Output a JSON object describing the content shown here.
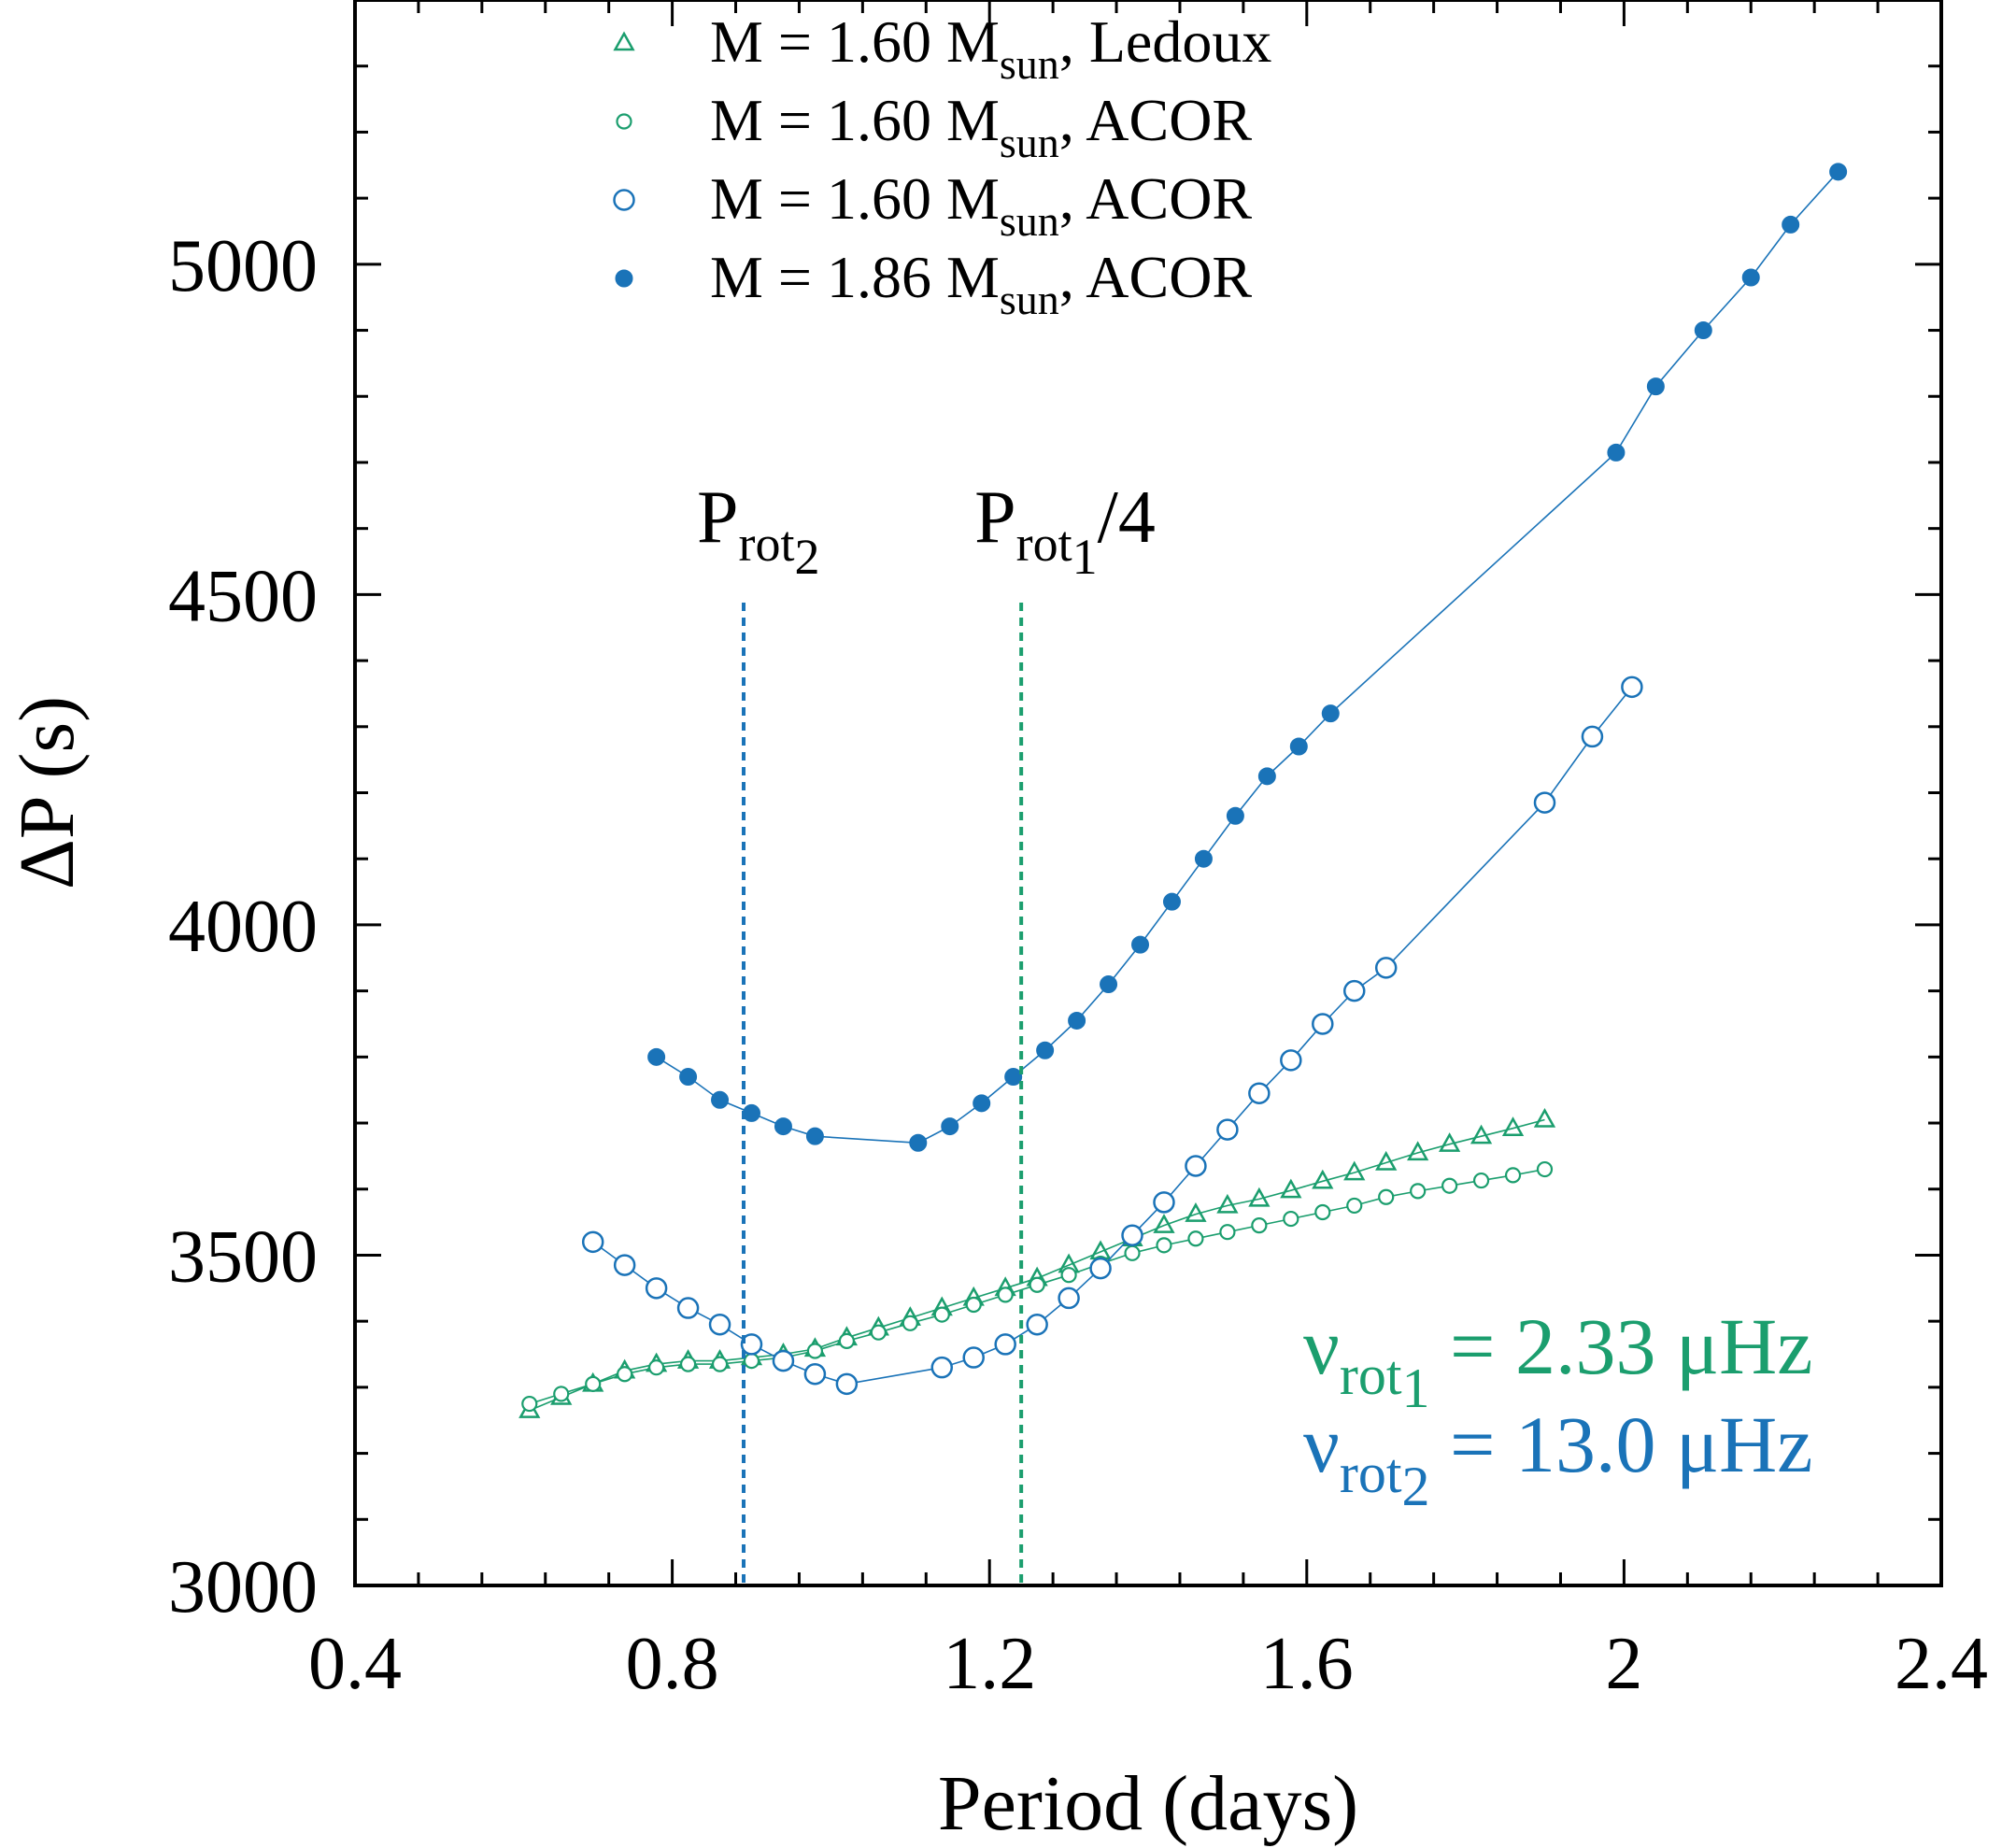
{
  "chart_data": {
    "type": "line",
    "xlabel": "Period (days)",
    "ylabel": "ΔP (s)",
    "xlim": [
      0.4,
      2.4
    ],
    "ylim": [
      3000,
      5400
    ],
    "xticks": [
      0.4,
      0.8,
      1.2,
      1.6,
      2.0,
      2.4
    ],
    "xtick_labels": [
      "0.4",
      "0.8",
      "1.2",
      "1.6",
      "2",
      "2.4"
    ],
    "yticks": [
      3000,
      3500,
      4000,
      4500,
      5000
    ],
    "ytick_labels": [
      "3000",
      "3500",
      "4000",
      "4500",
      "5000"
    ],
    "x_minor_step": 0.08,
    "y_minor_step": 100,
    "grid": false,
    "legend_position": "top-left",
    "series": [
      {
        "name": "M = 1.60 Msun, Ledoux",
        "legend": {
          "pre": "M = 1.60 M",
          "sub": "sun",
          "post": ", Ledoux"
        },
        "color": "#1b9e6e",
        "marker": "open-triangle",
        "x": [
          0.62,
          0.66,
          0.7,
          0.74,
          0.78,
          0.82,
          0.86,
          0.9,
          0.94,
          0.98,
          1.02,
          1.06,
          1.1,
          1.14,
          1.18,
          1.22,
          1.26,
          1.3,
          1.34,
          1.38,
          1.42,
          1.46,
          1.5,
          1.54,
          1.58,
          1.62,
          1.66,
          1.7,
          1.74,
          1.78,
          1.82,
          1.86,
          1.9
        ],
        "y": [
          3265,
          3285,
          3305,
          3325,
          3335,
          3340,
          3340,
          3345,
          3350,
          3358,
          3375,
          3390,
          3405,
          3420,
          3435,
          3450,
          3465,
          3485,
          3505,
          3525,
          3545,
          3562,
          3575,
          3585,
          3598,
          3612,
          3625,
          3640,
          3655,
          3668,
          3680,
          3692,
          3705
        ]
      },
      {
        "name": "M = 1.60 Msun, ACOR (small)",
        "legend": {
          "pre": "M = 1.60 M",
          "sub": "sun",
          "post": ", ACOR"
        },
        "color": "#1b9e6e",
        "marker": "small-open-circle",
        "x": [
          0.62,
          0.66,
          0.7,
          0.74,
          0.78,
          0.82,
          0.86,
          0.9,
          0.94,
          0.98,
          1.02,
          1.06,
          1.1,
          1.14,
          1.18,
          1.22,
          1.26,
          1.3,
          1.34,
          1.38,
          1.42,
          1.46,
          1.5,
          1.54,
          1.58,
          1.62,
          1.66,
          1.7,
          1.74,
          1.78,
          1.82,
          1.86,
          1.9
        ],
        "y": [
          3275,
          3290,
          3305,
          3320,
          3330,
          3335,
          3335,
          3340,
          3345,
          3355,
          3370,
          3383,
          3397,
          3410,
          3425,
          3440,
          3455,
          3470,
          3487,
          3503,
          3515,
          3525,
          3535,
          3545,
          3555,
          3565,
          3575,
          3588,
          3597,
          3605,
          3613,
          3621,
          3630
        ]
      },
      {
        "name": "M = 1.60 Msun, ACOR (large)",
        "legend": {
          "pre": "M = 1.60 M",
          "sub": "sun",
          "post": ", ACOR"
        },
        "color": "#1a73b8",
        "marker": "open-circle",
        "x": [
          0.7,
          0.74,
          0.78,
          0.82,
          0.86,
          0.9,
          0.94,
          0.98,
          1.02,
          1.14,
          1.18,
          1.22,
          1.26,
          1.3,
          1.34,
          1.38,
          1.42,
          1.46,
          1.5,
          1.54,
          1.58,
          1.62,
          1.66,
          1.7,
          1.9,
          1.96,
          2.01
        ],
        "y": [
          3520,
          3485,
          3450,
          3420,
          3395,
          3365,
          3340,
          3320,
          3305,
          3330,
          3345,
          3365,
          3395,
          3435,
          3480,
          3530,
          3580,
          3635,
          3690,
          3745,
          3795,
          3850,
          3900,
          3935,
          4185,
          4285,
          4360
        ]
      },
      {
        "name": "M = 1.86 Msun, ACOR",
        "legend": {
          "pre": "M = 1.86 M",
          "sub": "sun",
          "post": ", ACOR"
        },
        "color": "#1a73b8",
        "marker": "filled-circle",
        "x": [
          0.78,
          0.82,
          0.86,
          0.9,
          0.94,
          0.98,
          1.11,
          1.15,
          1.19,
          1.23,
          1.27,
          1.31,
          1.35,
          1.39,
          1.43,
          1.47,
          1.51,
          1.55,
          1.59,
          1.63,
          1.99,
          2.04,
          2.1,
          2.16,
          2.21,
          2.27
        ],
        "y": [
          3800,
          3770,
          3735,
          3715,
          3695,
          3680,
          3670,
          3695,
          3730,
          3770,
          3810,
          3855,
          3910,
          3970,
          4035,
          4100,
          4165,
          4225,
          4270,
          4320,
          4715,
          4815,
          4900,
          4980,
          5060,
          5140
        ]
      }
    ],
    "vlines": [
      {
        "x": 0.89,
        "color": "#1a73b8",
        "label": {
          "main": "P",
          "sub": "rot",
          "subsub": "2",
          "post": ""
        }
      },
      {
        "x": 1.24,
        "color": "#1b9e6e",
        "label": {
          "main": "P",
          "sub": "rot",
          "subsub": "1",
          "post": "/4"
        }
      }
    ],
    "annotations": [
      {
        "symbol": "ν",
        "sub": "rot",
        "subsub": "1",
        "value": "= 2.33 μHz",
        "color": "#1b9e6e"
      },
      {
        "symbol": "ν",
        "sub": "rot",
        "subsub": "2",
        "value": "= 13.0 μHz",
        "color": "#1a73b8"
      }
    ]
  }
}
